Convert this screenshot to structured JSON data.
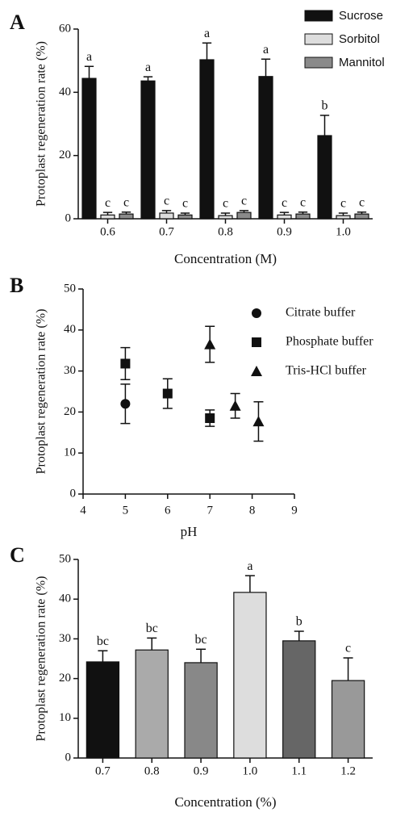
{
  "chart_data": [
    {
      "type": "bar",
      "panel_label": "A",
      "xlabel": "Concentration (M)",
      "ylabel": "Protoplast regeneration rate (%)",
      "categories": [
        "0.6",
        "0.7",
        "0.8",
        "0.9",
        "1.0"
      ],
      "series": [
        {
          "name": "Sucrose",
          "color": "#111111",
          "values": [
            44.4,
            43.6,
            50.3,
            45,
            26.3
          ],
          "errors": [
            3.8,
            1.3,
            5.3,
            5.5,
            6.4
          ],
          "letters": [
            "a",
            "a",
            "a",
            "a",
            "b"
          ]
        },
        {
          "name": "Sorbitol",
          "color": "#dddddd",
          "values": [
            1.2,
            1.8,
            1.0,
            1.2,
            1.0
          ],
          "errors": [
            0.8,
            0.8,
            0.8,
            0.8,
            0.8
          ],
          "letters": [
            "c",
            "c",
            "c",
            "c",
            "c"
          ]
        },
        {
          "name": "Mannitol",
          "color": "#8a8a8a",
          "values": [
            1.5,
            1.2,
            2.0,
            1.5,
            1.5
          ],
          "errors": [
            0.6,
            0.6,
            0.6,
            0.6,
            0.6
          ],
          "letters": [
            "c",
            "c",
            "c",
            "c",
            "c"
          ]
        }
      ],
      "ylim": [
        0,
        60
      ],
      "yticks": [
        0,
        20,
        40,
        60
      ],
      "legend": "top-right"
    },
    {
      "type": "scatter",
      "panel_label": "B",
      "xlabel": "pH",
      "ylabel": "Protoplast regeneration rate (%)",
      "series": [
        {
          "name": "Citrate buffer",
          "marker": "circle",
          "color": "#111111",
          "x": [
            5
          ],
          "values": [
            22
          ],
          "errors": [
            4.8
          ]
        },
        {
          "name": "Phosphate buffer",
          "marker": "square",
          "color": "#111111",
          "x": [
            5,
            6,
            7
          ],
          "values": [
            31.8,
            24.5,
            18.5
          ],
          "errors": [
            3.9,
            3.6,
            2
          ]
        },
        {
          "name": "Tris-HCl buffer",
          "marker": "triangle",
          "color": "#111111",
          "x": [
            7,
            7.6,
            8.15
          ],
          "values": [
            36.5,
            21.5,
            17.7
          ],
          "errors": [
            4.4,
            3,
            4.8
          ]
        }
      ],
      "xlim": [
        4,
        9
      ],
      "xticks": [
        4,
        5,
        6,
        7,
        8,
        9
      ],
      "ylim": [
        0,
        50
      ],
      "yticks": [
        0,
        10,
        20,
        30,
        40,
        50
      ],
      "legend": "top-right"
    },
    {
      "type": "bar",
      "panel_label": "C",
      "xlabel": "Concentration (%)",
      "ylabel": "Protoplast regeneration rate (%)",
      "categories": [
        "0.7",
        "0.8",
        "0.9",
        "1.0",
        "1.1",
        "1.2"
      ],
      "values": [
        24.2,
        27.2,
        24,
        41.7,
        29.5,
        19.5
      ],
      "errors": [
        2.8,
        3,
        3.4,
        4.2,
        2.4,
        5.7
      ],
      "letters": [
        "bc",
        "bc",
        "bc",
        "a",
        "b",
        "c"
      ],
      "colors": [
        "#111111",
        "#aaaaaa",
        "#888888",
        "#dddddd",
        "#666666",
        "#999999"
      ],
      "ylim": [
        0,
        50
      ],
      "yticks": [
        0,
        10,
        20,
        30,
        40,
        50
      ]
    }
  ]
}
